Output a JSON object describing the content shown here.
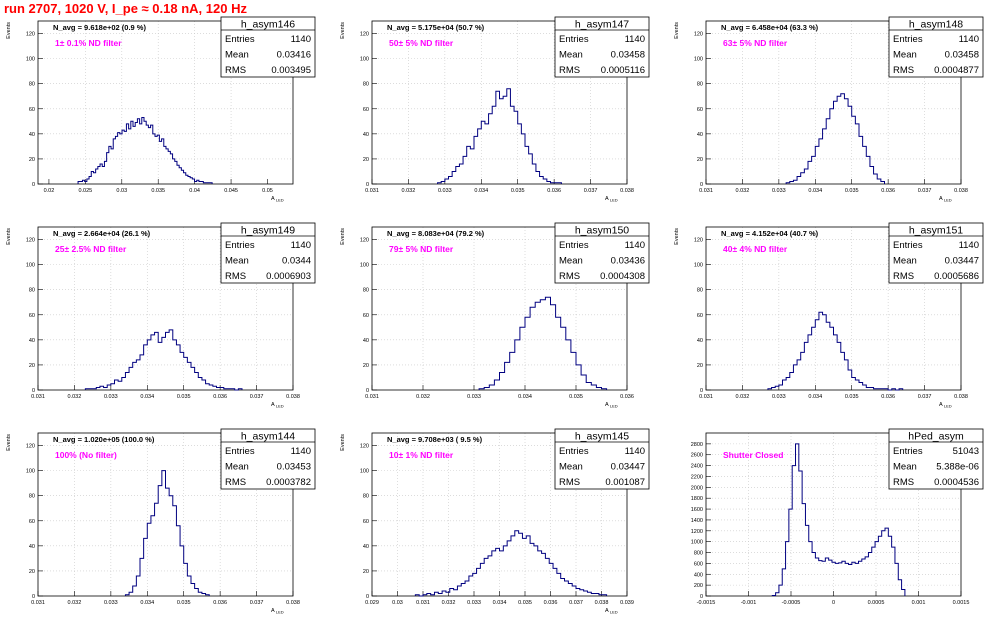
{
  "page": {
    "title": "run 2707,  1020 V, I_pe ≈ 0.18 nA, 120 Hz",
    "title_color": "#ff0000"
  },
  "style": {
    "histogram_color": "#000080",
    "annotation_color": "#ff00ff",
    "grid_color": "#c8c8c8"
  },
  "chart_data": [
    {
      "type": "bar",
      "histogram_name": "h_asym146",
      "stats": {
        "labels": [
          "Entries",
          "Mean",
          "RMS"
        ],
        "values": [
          "1140",
          "0.03416",
          "0.003495"
        ]
      },
      "navg": "N_avg = 9.618e+02 (0.9 %)",
      "annotation": "1± 0.1% ND filter",
      "xlabel": "A_LED",
      "ylabel": "Events",
      "xlim": [
        0.0185,
        0.0535
      ],
      "ylim": [
        0,
        130
      ],
      "xticks": [
        0.02,
        0.025,
        0.03,
        0.035,
        0.04,
        0.045,
        0.05
      ],
      "xtick_labels": [
        "0.02",
        "0.025",
        "0.03",
        "0.035",
        "0.04",
        "0.045",
        "0.05"
      ],
      "yticks": [
        0,
        20,
        40,
        60,
        80,
        100,
        120
      ],
      "ytick_labels": [
        "0",
        "20",
        "40",
        "60",
        "80",
        "100",
        "120"
      ],
      "bin_edges": [
        0.024,
        0.0424
      ],
      "values": [
        2,
        2,
        3,
        2,
        4,
        6,
        10,
        9,
        12,
        14,
        16,
        14,
        18,
        25,
        30,
        28,
        36,
        38,
        41,
        40,
        43,
        42,
        48,
        44,
        50,
        46,
        49,
        52,
        48,
        53,
        50,
        47,
        45,
        47,
        40,
        38,
        39,
        34,
        36,
        30,
        28,
        26,
        24,
        20,
        18,
        15,
        13,
        11,
        9,
        7,
        6,
        5,
        4,
        2,
        3,
        2,
        2,
        1,
        1,
        1,
        1
      ]
    },
    {
      "type": "bar",
      "histogram_name": "h_asym147",
      "stats": {
        "labels": [
          "Entries",
          "Mean",
          "RMS"
        ],
        "values": [
          "1140",
          "0.03458",
          "0.0005116"
        ]
      },
      "navg": "N_avg = 5.175e+04 (50.7 %)",
      "annotation": "50± 5% ND filter",
      "xlabel": "A_LED",
      "ylabel": "Events",
      "xlim": [
        0.031,
        0.038
      ],
      "ylim": [
        0,
        130
      ],
      "xticks": [
        0.031,
        0.032,
        0.033,
        0.034,
        0.035,
        0.036,
        0.037,
        0.038
      ],
      "xtick_labels": [
        "0.031",
        "0.032",
        "0.033",
        "0.034",
        "0.035",
        "0.036",
        "0.037",
        "0.038"
      ],
      "yticks": [
        0,
        20,
        40,
        60,
        80,
        100,
        120
      ],
      "ytick_labels": [
        "0",
        "20",
        "40",
        "60",
        "80",
        "100",
        "120"
      ],
      "bin_edges": [
        0.0328,
        0.0362
      ],
      "values": [
        1,
        2,
        4,
        6,
        10,
        14,
        16,
        22,
        30,
        28,
        38,
        44,
        50,
        48,
        56,
        62,
        74,
        68,
        70,
        76,
        62,
        58,
        48,
        40,
        30,
        24,
        16,
        10,
        6,
        4,
        2,
        1,
        1,
        1
      ]
    },
    {
      "type": "bar",
      "histogram_name": "h_asym148",
      "stats": {
        "labels": [
          "Entries",
          "Mean",
          "RMS"
        ],
        "values": [
          "1140",
          "0.03458",
          "0.0004877"
        ]
      },
      "navg": "N_avg = 6.458e+04 (63.3 %)",
      "annotation": "63± 5% ND filter",
      "xlabel": "A_LED",
      "ylabel": "Events",
      "xlim": [
        0.031,
        0.038
      ],
      "ylim": [
        0,
        130
      ],
      "xticks": [
        0.031,
        0.032,
        0.033,
        0.034,
        0.035,
        0.036,
        0.037,
        0.038
      ],
      "xtick_labels": [
        "0.031",
        "0.032",
        "0.033",
        "0.034",
        "0.035",
        "0.036",
        "0.037",
        "0.038"
      ],
      "yticks": [
        0,
        20,
        40,
        60,
        80,
        100,
        120
      ],
      "ytick_labels": [
        "0",
        "20",
        "40",
        "60",
        "80",
        "100",
        "120"
      ],
      "bin_edges": [
        0.0332,
        0.0359
      ],
      "values": [
        1,
        2,
        3,
        6,
        9,
        12,
        18,
        22,
        30,
        36,
        44,
        52,
        60,
        66,
        70,
        72,
        68,
        62,
        54,
        48,
        38,
        30,
        22,
        14,
        8,
        4,
        2
      ]
    },
    {
      "type": "bar",
      "histogram_name": "h_asym149",
      "stats": {
        "labels": [
          "Entries",
          "Mean",
          "RMS"
        ],
        "values": [
          "1140",
          "0.0344",
          "0.0006903"
        ]
      },
      "navg": "N_avg = 2.664e+04 (26.1 %)",
      "annotation": "25± 2.5% ND filter",
      "xlabel": "A_LED",
      "ylabel": "Events",
      "xlim": [
        0.031,
        0.038
      ],
      "ylim": [
        0,
        130
      ],
      "xticks": [
        0.031,
        0.032,
        0.033,
        0.034,
        0.035,
        0.036,
        0.037,
        0.038
      ],
      "xtick_labels": [
        "0.031",
        "0.032",
        "0.033",
        "0.034",
        "0.035",
        "0.036",
        "0.037",
        "0.038"
      ],
      "yticks": [
        0,
        20,
        40,
        60,
        80,
        100,
        120
      ],
      "ytick_labels": [
        "0",
        "20",
        "40",
        "60",
        "80",
        "100",
        "120"
      ],
      "bin_edges": [
        0.0323,
        0.0366
      ],
      "values": [
        1,
        1,
        1,
        2,
        3,
        2,
        4,
        5,
        8,
        7,
        10,
        14,
        18,
        22,
        24,
        28,
        36,
        40,
        44,
        46,
        38,
        42,
        46,
        48,
        40,
        36,
        30,
        26,
        22,
        18,
        14,
        10,
        8,
        5,
        4,
        3,
        2,
        2,
        1,
        1,
        1,
        0,
        1
      ]
    },
    {
      "type": "bar",
      "histogram_name": "h_asym150",
      "stats": {
        "labels": [
          "Entries",
          "Mean",
          "RMS"
        ],
        "values": [
          "1140",
          "0.03436",
          "0.0004308"
        ]
      },
      "navg": "N_avg = 8.083e+04 (79.2 %)",
      "annotation": "79± 5% ND filter",
      "xlabel": "A_LED",
      "ylabel": "Events",
      "xlim": [
        0.031,
        0.036
      ],
      "ylim": [
        0,
        130
      ],
      "xticks": [
        0.031,
        0.032,
        0.033,
        0.034,
        0.035,
        0.036
      ],
      "xtick_labels": [
        "0.031",
        "0.032",
        "0.033",
        "0.034",
        "0.035",
        "0.036"
      ],
      "yticks": [
        0,
        20,
        40,
        60,
        80,
        100,
        120
      ],
      "ytick_labels": [
        "0",
        "20",
        "40",
        "60",
        "80",
        "100",
        "120"
      ],
      "bin_edges": [
        0.0331,
        0.0356
      ],
      "values": [
        1,
        2,
        4,
        8,
        14,
        22,
        30,
        40,
        50,
        58,
        66,
        70,
        72,
        74,
        68,
        58,
        50,
        40,
        30,
        20,
        12,
        6,
        4,
        2,
        1
      ]
    },
    {
      "type": "bar",
      "histogram_name": "h_asym151",
      "stats": {
        "labels": [
          "Entries",
          "Mean",
          "RMS"
        ],
        "values": [
          "1140",
          "0.03447",
          "0.0005686"
        ]
      },
      "navg": "N_avg = 4.152e+04 (40.7 %)",
      "annotation": "40± 4% ND filter",
      "xlabel": "A_LED",
      "ylabel": "Events",
      "xlim": [
        0.031,
        0.038
      ],
      "ylim": [
        0,
        130
      ],
      "xticks": [
        0.031,
        0.032,
        0.033,
        0.034,
        0.035,
        0.036,
        0.037,
        0.038
      ],
      "xtick_labels": [
        "0.031",
        "0.032",
        "0.033",
        "0.034",
        "0.035",
        "0.036",
        "0.037",
        "0.038"
      ],
      "yticks": [
        0,
        20,
        40,
        60,
        80,
        100,
        120
      ],
      "ytick_labels": [
        "0",
        "20",
        "40",
        "60",
        "80",
        "100",
        "120"
      ],
      "bin_edges": [
        0.0327,
        0.0364
      ],
      "values": [
        1,
        2,
        3,
        4,
        8,
        10,
        14,
        20,
        24,
        30,
        38,
        44,
        50,
        56,
        62,
        60,
        54,
        50,
        44,
        38,
        30,
        24,
        16,
        10,
        8,
        6,
        4,
        2,
        2,
        1,
        1,
        1,
        1,
        0,
        1,
        0,
        1
      ]
    },
    {
      "type": "bar",
      "histogram_name": "h_asym144",
      "stats": {
        "labels": [
          "Entries",
          "Mean",
          "RMS"
        ],
        "values": [
          "1140",
          "0.03453",
          "0.0003782"
        ]
      },
      "navg": "N_avg = 1.020e+05 (100.0 %)",
      "annotation": "100% (No filter)",
      "xlabel": "A_LED",
      "ylabel": "Events",
      "xlim": [
        0.031,
        0.038
      ],
      "ylim": [
        0,
        130
      ],
      "xticks": [
        0.031,
        0.032,
        0.033,
        0.034,
        0.035,
        0.036,
        0.037,
        0.038
      ],
      "xtick_labels": [
        "0.031",
        "0.032",
        "0.033",
        "0.034",
        "0.035",
        "0.036",
        "0.037",
        "0.038"
      ],
      "yticks": [
        0,
        20,
        40,
        60,
        80,
        100,
        120
      ],
      "ytick_labels": [
        "0",
        "20",
        "40",
        "60",
        "80",
        "100",
        "120"
      ],
      "bin_edges": [
        0.0334,
        0.0357
      ],
      "values": [
        1,
        3,
        8,
        16,
        30,
        46,
        58,
        64,
        74,
        88,
        100,
        86,
        80,
        72,
        56,
        40,
        26,
        16,
        10,
        6,
        3,
        2,
        1
      ]
    },
    {
      "type": "bar",
      "histogram_name": "h_asym145",
      "stats": {
        "labels": [
          "Entries",
          "Mean",
          "RMS"
        ],
        "values": [
          "1140",
          "0.03447",
          "0.001087"
        ]
      },
      "navg": "N_avg = 9.708e+03 ( 9.5 %)",
      "annotation": "10± 1% ND filter",
      "xlabel": "A_LED",
      "ylabel": "Events",
      "xlim": [
        0.029,
        0.039
      ],
      "ylim": [
        0,
        130
      ],
      "xticks": [
        0.029,
        0.03,
        0.031,
        0.032,
        0.033,
        0.034,
        0.035,
        0.036,
        0.037,
        0.038,
        0.039
      ],
      "xtick_labels": [
        "0.029",
        "0.03",
        "0.031",
        "0.032",
        "0.033",
        "0.034",
        "0.035",
        "0.036",
        "0.037",
        "0.038",
        "0.039"
      ],
      "yticks": [
        0,
        20,
        40,
        60,
        80,
        100,
        120
      ],
      "ytick_labels": [
        "0",
        "20",
        "40",
        "60",
        "80",
        "100",
        "120"
      ],
      "bin_edges": [
        0.0307,
        0.0382
      ],
      "values": [
        1,
        0,
        1,
        2,
        1,
        3,
        2,
        4,
        3,
        6,
        5,
        8,
        10,
        12,
        16,
        18,
        22,
        26,
        30,
        32,
        36,
        38,
        36,
        40,
        44,
        48,
        52,
        50,
        46,
        48,
        42,
        40,
        36,
        34,
        30,
        26,
        22,
        18,
        14,
        12,
        10,
        8,
        6,
        5,
        4,
        3,
        2,
        2,
        1,
        1
      ]
    },
    {
      "type": "bar",
      "histogram_name": "hPed_asym",
      "stats": {
        "labels": [
          "Entries",
          "Mean",
          "RMS"
        ],
        "values": [
          "51043",
          "5.388e-06",
          "0.0004536"
        ]
      },
      "annotation": "Shutter Closed",
      "xlabel": "",
      "ylabel": "",
      "xlim": [
        -0.0015,
        0.0015
      ],
      "ylim": [
        0,
        3000
      ],
      "xticks": [
        -0.0015,
        -0.001,
        -0.0005,
        0,
        0.0005,
        0.001,
        0.0015
      ],
      "xtick_labels": [
        "-0.0015",
        "-0.001",
        "-0.0005",
        "0",
        "0.0005",
        "0.001",
        "0.0015"
      ],
      "yticks": [
        0,
        200,
        400,
        600,
        800,
        1000,
        1200,
        1400,
        1600,
        1800,
        2000,
        2200,
        2400,
        2600,
        2800
      ],
      "ytick_labels": [
        "0",
        "200",
        "400",
        "600",
        "800",
        "1000",
        "1200",
        "1400",
        "1600",
        "1800",
        "2000",
        "2200",
        "2400",
        "2600",
        "2800"
      ],
      "bin_edges": [
        -0.00072,
        0.00084
      ],
      "values": [
        10,
        60,
        200,
        500,
        1000,
        1600,
        2400,
        2800,
        2300,
        1700,
        1300,
        1000,
        800,
        700,
        650,
        640,
        700,
        660,
        620,
        600,
        610,
        640,
        600,
        580,
        620,
        600,
        640,
        680,
        720,
        800,
        900,
        1000,
        1100,
        1200,
        1250,
        1100,
        900,
        600,
        300,
        120
      ]
    }
  ]
}
